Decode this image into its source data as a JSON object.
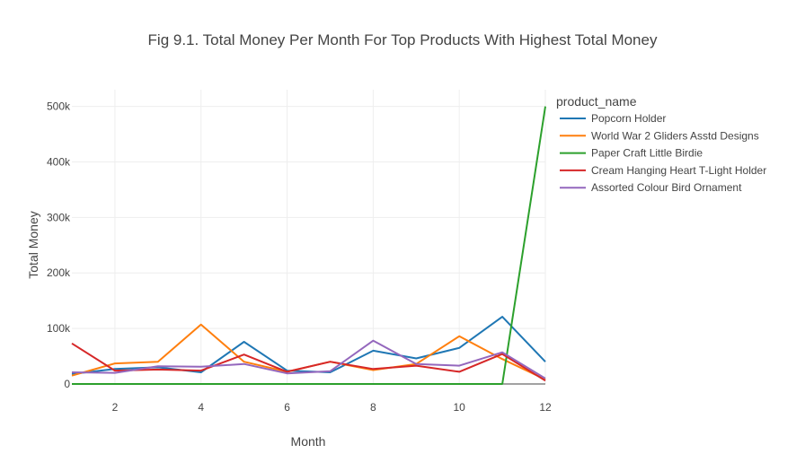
{
  "chart_data": {
    "type": "line",
    "title": "Fig 9.1. Total Money Per Month For Top Products With Highest Total Money",
    "xlabel": "Month",
    "ylabel": "Total Money",
    "x": [
      1,
      2,
      3,
      4,
      5,
      6,
      7,
      8,
      9,
      10,
      11,
      12
    ],
    "xlim": [
      1,
      12
    ],
    "ylim": [
      0,
      530000
    ],
    "x_ticks": [
      2,
      4,
      6,
      8,
      10,
      12
    ],
    "y_ticks": [
      0,
      100000,
      200000,
      300000,
      400000,
      500000
    ],
    "y_tick_labels": [
      "0",
      "100k",
      "200k",
      "300k",
      "400k",
      "500k"
    ],
    "grid": true,
    "legend_title": "product_name",
    "legend_position": "top-right, outside plot",
    "series": [
      {
        "name": "Popcorn Holder",
        "color": "#1f77b4",
        "values": [
          18000,
          27000,
          30000,
          21000,
          76000,
          24000,
          21000,
          60000,
          46000,
          65000,
          121000,
          40000
        ]
      },
      {
        "name": "World War 2 Gliders Asstd Designs",
        "color": "#ff7f0e",
        "values": [
          15000,
          37000,
          40000,
          107000,
          40000,
          22000,
          40000,
          25000,
          36000,
          86000,
          45000,
          8000
        ]
      },
      {
        "name": "Paper Craft Little Birdie",
        "color": "#2ca02c",
        "values": [
          0,
          0,
          0,
          0,
          0,
          0,
          0,
          0,
          0,
          0,
          0,
          500000
        ]
      },
      {
        "name": "Cream Hanging Heart T-Light Holder",
        "color": "#d62728",
        "values": [
          73000,
          24000,
          26000,
          24000,
          53000,
          22000,
          40000,
          27000,
          33000,
          22000,
          54000,
          6000
        ]
      },
      {
        "name": "Assorted Colour Bird Ornament",
        "color": "#9467bd",
        "values": [
          21000,
          20000,
          32000,
          31000,
          36000,
          19000,
          23000,
          78000,
          36000,
          33000,
          57000,
          10000
        ]
      }
    ]
  }
}
